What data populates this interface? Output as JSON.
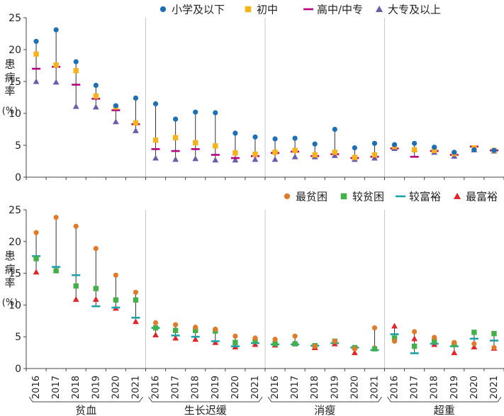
{
  "colors": {
    "primary": "#1f6fb5",
    "junior": "#f5b41a",
    "senior": "#b5007f",
    "college": "#6e5ca8",
    "poorest": "#e07b2c",
    "poorer": "#44b04a",
    "richer": "#1aa3a9",
    "richest": "#e0262b",
    "range": "#333333",
    "axis": "#444444",
    "grid": "#c8c8c8"
  },
  "chart_data": [
    {
      "type": "scatter",
      "ylabel": "患病率 (%)",
      "ylim": [
        0,
        25
      ],
      "yticks": [
        0,
        5,
        10,
        15,
        20,
        25
      ],
      "x": [
        "2016",
        "2017",
        "2018",
        "2019",
        "2020",
        "2021",
        "2016",
        "2017",
        "2018",
        "2019",
        "2020",
        "2021",
        "2016",
        "2017",
        "2018",
        "2019",
        "2020",
        "2021",
        "2016",
        "2017",
        "2018",
        "2019",
        "2020",
        "2021"
      ],
      "groups": [
        "贫血",
        "生长迟缓",
        "消瘦",
        "超重"
      ],
      "legend": "top-right",
      "series": [
        {
          "name": "小学及以下",
          "marker": "circle",
          "color": "#1f6fb5",
          "values": [
            21.3,
            23.1,
            18.1,
            14.4,
            11.2,
            12.4,
            11.5,
            9.1,
            10.2,
            10.1,
            6.9,
            6.3,
            6.0,
            6.1,
            5.2,
            7.5,
            4.6,
            5.3,
            5.1,
            5.3,
            4.7,
            3.9,
            4.3,
            4.2
          ]
        },
        {
          "name": "初中",
          "marker": "square",
          "color": "#f5b41a",
          "values": [
            19.3,
            17.6,
            16.7,
            12.7,
            11.0,
            8.5,
            5.8,
            6.2,
            5.4,
            4.9,
            3.8,
            3.6,
            3.9,
            4.2,
            3.5,
            3.9,
            3.1,
            3.5,
            4.8,
            4.3,
            4.2,
            3.7,
            4.6,
            4.2
          ]
        },
        {
          "name": "高中/中专",
          "marker": "dash",
          "color": "#b5007f",
          "values": [
            17.0,
            17.3,
            14.5,
            12.3,
            10.5,
            8.3,
            4.4,
            4.1,
            4.4,
            3.5,
            3.0,
            3.3,
            3.8,
            4.0,
            3.3,
            3.6,
            3.0,
            3.2,
            4.5,
            3.2,
            4.1,
            3.5,
            4.8,
            4.2
          ]
        },
        {
          "name": "大专及以上",
          "marker": "triangle",
          "color": "#6e5ca8",
          "values": [
            15.0,
            14.9,
            11.1,
            11.0,
            8.7,
            7.3,
            3.0,
            2.8,
            2.9,
            2.7,
            2.7,
            2.8,
            2.8,
            3.2,
            3.2,
            3.4,
            2.8,
            3.0,
            4.5,
            4.4,
            3.9,
            3.3,
            4.3,
            4.1
          ]
        }
      ]
    },
    {
      "type": "scatter",
      "ylabel": "患病率 (%)",
      "ylim": [
        0,
        25
      ],
      "yticks": [
        0,
        5,
        10,
        15,
        20,
        25
      ],
      "x": [
        "2016",
        "2017",
        "2018",
        "2019",
        "2020",
        "2021",
        "2016",
        "2017",
        "2018",
        "2019",
        "2020",
        "2021",
        "2016",
        "2017",
        "2018",
        "2019",
        "2020",
        "2021",
        "2016",
        "2017",
        "2018",
        "2019",
        "2020",
        "2021"
      ],
      "groups": [
        "贫血",
        "生长迟缓",
        "消瘦",
        "超重"
      ],
      "legend": "top-right",
      "series": [
        {
          "name": "最贫困",
          "marker": "circle",
          "color": "#e07b2c",
          "values": [
            21.4,
            23.8,
            22.4,
            18.9,
            14.7,
            12.0,
            7.2,
            6.9,
            6.5,
            6.2,
            5.1,
            4.8,
            4.6,
            5.1,
            3.5,
            4.3,
            3.1,
            6.4,
            4.3,
            5.8,
            4.9,
            4.1,
            3.9,
            3.3
          ]
        },
        {
          "name": "较贫困",
          "marker": "square",
          "color": "#44b04a",
          "values": [
            17.3,
            15.4,
            13.0,
            12.6,
            10.8,
            10.8,
            6.4,
            6.0,
            6.0,
            5.9,
            4.1,
            4.4,
            3.9,
            3.9,
            3.6,
            4.3,
            3.3,
            3.1,
            4.8,
            3.5,
            4.3,
            3.8,
            5.7,
            5.5
          ]
        },
        {
          "name": "较富裕",
          "marker": "dash",
          "color": "#1aa3a9",
          "values": [
            17.7,
            16.0,
            14.7,
            9.8,
            9.6,
            8.0,
            6.4,
            5.2,
            5.0,
            4.3,
            3.5,
            4.0,
            3.8,
            3.8,
            3.6,
            4.0,
            3.3,
            2.9,
            5.4,
            2.4,
            3.9,
            3.5,
            4.7,
            4.4
          ]
        },
        {
          "name": "最富裕",
          "marker": "triangle",
          "color": "#e0262b",
          "values": [
            15.2,
            15.5,
            10.9,
            10.9,
            9.5,
            7.4,
            5.3,
            4.8,
            4.6,
            4.1,
            3.4,
            3.8,
            3.7,
            3.9,
            3.3,
            3.9,
            2.5,
            3.3,
            6.7,
            4.7,
            3.8,
            2.5,
            3.4,
            3.2
          ]
        }
      ]
    }
  ]
}
